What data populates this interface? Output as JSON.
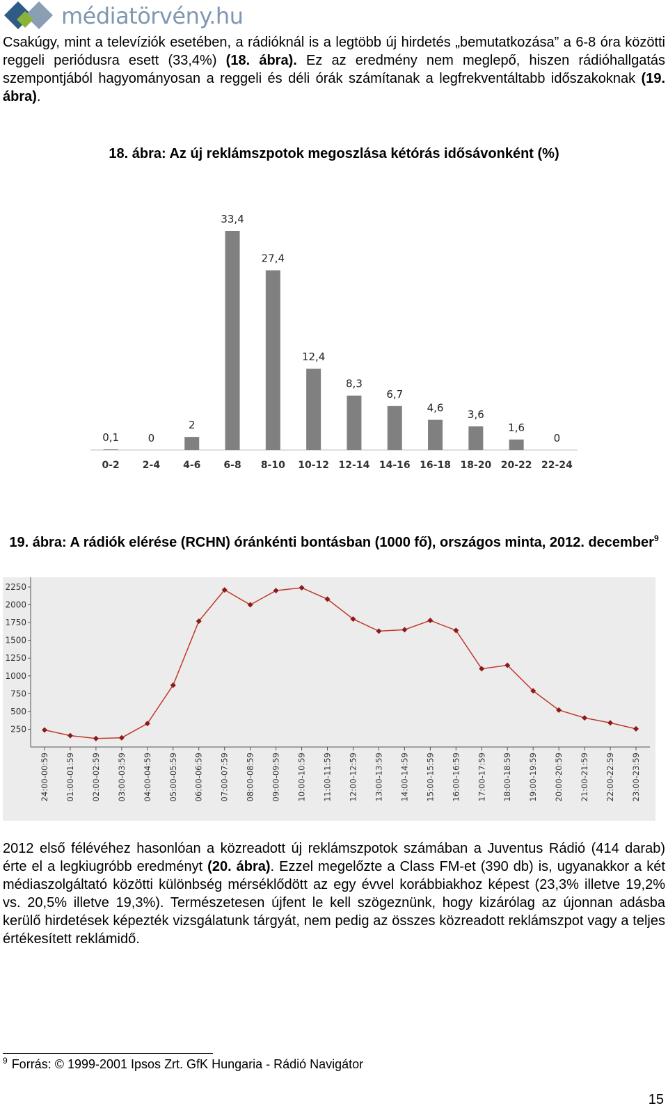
{
  "header": {
    "logo_text": "médiatörvény.hu",
    "brand_colors": {
      "blue_dark": "#2f5b86",
      "blue_light": "#7f97b0",
      "green": "#8ab33a"
    }
  },
  "intro": {
    "text_1": "Csakúgy, mint a televíziók esetében, a rádióknál is a legtöbb új hirdetés „bemutatkozása” a 6-8 óra közötti reggeli periódusra esett (33,4%) ",
    "ref_1": "(18. ábra).",
    "text_2": " Ez az eredmény nem meglepő, hiszen rádióhallgatás szempontjából hagyományosan a reggeli és déli órák számítanak a legfrekventáltabb időszakoknak ",
    "ref_2": "(19. ábra)",
    "text_3": "."
  },
  "figure18": {
    "caption": "18. ábra: Az új reklámszpotok megoszlása kétórás idősávonként (%)",
    "chart_data": {
      "type": "bar",
      "categories": [
        "0-2",
        "2-4",
        "4-6",
        "6-8",
        "8-10",
        "10-12",
        "12-14",
        "14-16",
        "16-18",
        "18-20",
        "20-22",
        "22-24"
      ],
      "values": [
        0.1,
        0,
        2,
        33.4,
        27.4,
        12.4,
        8.3,
        6.7,
        4.6,
        3.6,
        1.6,
        0
      ],
      "value_labels": [
        "0,1",
        "0",
        "2",
        "33,4",
        "27,4",
        "12,4",
        "8,3",
        "6,7",
        "4,6",
        "3,6",
        "1,6",
        "0"
      ],
      "bar_color": "#808080",
      "grid": false,
      "legend": "none"
    }
  },
  "figure19": {
    "caption": "19. ábra: A rádiók elérése (RCHN) óránkénti bontásban (1000 fő), országos minta, 2012. december",
    "footnote_ref": "9",
    "chart_data": {
      "type": "line",
      "x": [
        "24:00-00:59",
        "01:00-01:59",
        "02:00-02:59",
        "03:00-03:59",
        "04:00-04:59",
        "05:00-05:59",
        "06:00-06:59",
        "07:00-07:59",
        "08:00-08:59",
        "09:00-09:59",
        "10:00-10:59",
        "11:00-11:59",
        "12:00-12:59",
        "13:00-13:59",
        "14:00-14:59",
        "15:00-15:59",
        "16:00-16:59",
        "17:00-17:59",
        "18:00-18:59",
        "19:00-19:59",
        "20:00-20:59",
        "21:00-21:59",
        "22:00-22:59",
        "23:00-23:59"
      ],
      "series": [
        {
          "values": [
            240,
            160,
            120,
            130,
            330,
            870,
            1770,
            2210,
            2000,
            2200,
            2240,
            2080,
            1800,
            1630,
            1650,
            1780,
            1640,
            1100,
            1150,
            790,
            520,
            410,
            340,
            255
          ]
        }
      ],
      "yticks": [
        "2250",
        "2000",
        "1750",
        "1500",
        "1250",
        "1000",
        "750",
        "500",
        "250"
      ],
      "ylim": [
        0,
        2250
      ],
      "line_color": "#c0392b",
      "background": "#ececec",
      "grid": false,
      "legend": "none"
    }
  },
  "body": {
    "text_1": "2012 első félévéhez hasonlóan a közreadott új reklámszpotok számában a Juventus Rádió (414 darab) érte el a legkiugróbb eredményt ",
    "ref": "(20. ábra)",
    "text_2": ". Ezzel megelőzte a Class FM-et (390 db) is, ugyanakkor a két médiaszolgáltató közötti különbség mérséklődött az egy évvel korábbiakhoz képest (23,3% illetve 19,2% vs. 20,5% illetve 19,3%). Természetesen újfent le kell szögeznünk, hogy kizárólag az újonnan adásba kerülő hirdetések képezték vizsgálatunk tárgyát, nem pedig az összes közreadott reklámszpot vagy a teljes értékesített reklámidő."
  },
  "footnote": {
    "number": "9",
    "text": "Forrás: © 1999-2001 Ipsos Zrt. GfK Hungaria - Rádió Navigátor"
  },
  "page_number": "15"
}
